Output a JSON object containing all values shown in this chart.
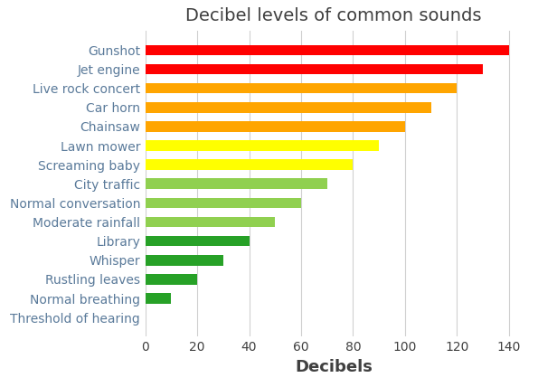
{
  "title": "Decibel levels of common sounds",
  "xlabel": "Decibels",
  "categories": [
    "Threshold of hearing",
    "Normal breathing",
    "Rustling leaves",
    "Whisper",
    "Library",
    "Moderate rainfall",
    "Normal conversation",
    "City traffic",
    "Screaming baby",
    "Lawn mower",
    "Chainsaw",
    "Car horn",
    "Live rock concert",
    "Jet engine",
    "Gunshot"
  ],
  "values": [
    0,
    10,
    20,
    30,
    40,
    50,
    60,
    70,
    80,
    90,
    100,
    110,
    120,
    130,
    140
  ],
  "bar_colors": [
    "#d3d3d3",
    "#27a127",
    "#27a127",
    "#27a127",
    "#27a127",
    "#90d050",
    "#90d050",
    "#90d050",
    "#ffff00",
    "#ffff00",
    "#ffa500",
    "#ffa500",
    "#ffa500",
    "#ff0000",
    "#ff0000"
  ],
  "xlim": [
    0,
    145
  ],
  "xticks": [
    0,
    20,
    40,
    60,
    80,
    100,
    120,
    140
  ],
  "background_color": "#ffffff",
  "title_color": "#404040",
  "label_color": "#5a7a9a",
  "tick_color": "#404040",
  "grid_color": "#d0d0d0",
  "title_fontsize": 14,
  "xlabel_fontsize": 13,
  "ylabel_fontsize": 10,
  "tick_fontsize": 10,
  "bar_height": 0.55
}
